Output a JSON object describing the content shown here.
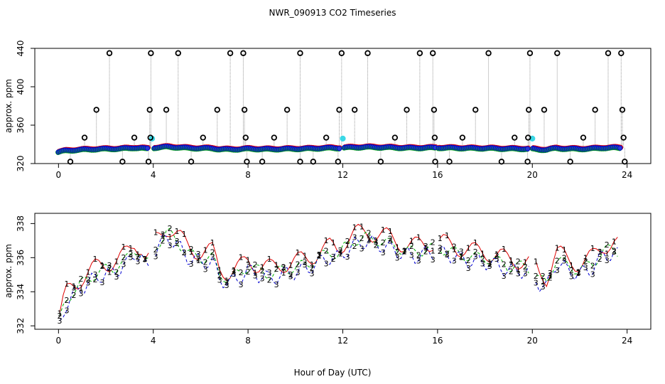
{
  "figure": {
    "title": "NWR_090913  CO2 Timeseries",
    "xlabel": "Hour of Day (UTC)"
  },
  "colors": {
    "series1": "#e00000",
    "series2": "#00b000",
    "series3": "#0000d0",
    "fill_blue": "#2a3bd6",
    "highlight_cyan": "#3ad8e6",
    "outlier_black": "#000000",
    "guide_gray": "#9a9a9a"
  },
  "chart_data": [
    {
      "type": "scatter",
      "title": "",
      "xlabel": "",
      "ylabel": "approx. ppm",
      "xlim": [
        -1,
        25
      ],
      "ylim": [
        320,
        440
      ],
      "xticks": [
        0,
        4,
        8,
        12,
        16,
        20,
        24
      ],
      "yticks": [
        320,
        360,
        400,
        440
      ],
      "x_tick_labels": [
        "0",
        "4",
        "8",
        "12",
        "16",
        "20",
        "24"
      ],
      "y_tick_labels": [
        "320",
        "360",
        "400",
        "440"
      ],
      "baseline_anchors": {
        "x": [
          0,
          0.3,
          0.6,
          1.0,
          1.5,
          2.0,
          2.5,
          3.0,
          3.2,
          3.5,
          3.7,
          3.9,
          4.0,
          4.3,
          4.6,
          5.0,
          5.5,
          6.0,
          6.5,
          6.8,
          7.2,
          7.6,
          8.0,
          8.5,
          9.0,
          9.5,
          10.0,
          10.5,
          11.0,
          11.5,
          11.8,
          12.0,
          12.5,
          13.0,
          13.5,
          14.0,
          14.5,
          15.0,
          15.5,
          16.0,
          16.5,
          17.0,
          17.5,
          18.0,
          18.5,
          19.0,
          19.5,
          20.0,
          20.3,
          20.6,
          21.0,
          21.5,
          22.0,
          22.5,
          23.0,
          23.5,
          23.7
        ],
        "y": [
          332,
          333.5,
          334,
          334.5,
          335,
          335.3,
          335.5,
          336,
          336.5,
          336.3,
          335.5,
          335.8,
          336.5,
          337,
          337.5,
          337,
          336.2,
          336,
          336,
          335,
          334.8,
          335,
          335.5,
          335.2,
          335,
          335.3,
          335.4,
          335.6,
          336,
          336.3,
          336.2,
          336.5,
          337,
          337.2,
          337,
          336.8,
          336.5,
          336.3,
          336.5,
          336.6,
          336.4,
          336.2,
          336,
          336,
          335.8,
          335.5,
          335.5,
          335.3,
          334.7,
          334.5,
          336,
          335.5,
          335.3,
          335.6,
          336.4,
          336.5,
          336.3
        ]
      },
      "outliers": [
        {
          "x": 0.5,
          "y": 322
        },
        {
          "x": 1.1,
          "y": 347
        },
        {
          "x": 1.6,
          "y": 376
        },
        {
          "x": 2.15,
          "y": 435
        },
        {
          "x": 2.7,
          "y": 322
        },
        {
          "x": 3.2,
          "y": 347
        },
        {
          "x": 3.8,
          "y": 322
        },
        {
          "x": 3.85,
          "y": 376
        },
        {
          "x": 3.9,
          "y": 435
        },
        {
          "x": 3.88,
          "y": 347
        },
        {
          "x": 4.55,
          "y": 376
        },
        {
          "x": 5.05,
          "y": 435
        },
        {
          "x": 5.6,
          "y": 322
        },
        {
          "x": 6.1,
          "y": 347
        },
        {
          "x": 6.7,
          "y": 376
        },
        {
          "x": 7.25,
          "y": 435
        },
        {
          "x": 7.8,
          "y": 435
        },
        {
          "x": 7.85,
          "y": 376
        },
        {
          "x": 7.9,
          "y": 347
        },
        {
          "x": 7.95,
          "y": 322
        },
        {
          "x": 8.6,
          "y": 322
        },
        {
          "x": 9.1,
          "y": 347
        },
        {
          "x": 9.65,
          "y": 376
        },
        {
          "x": 10.2,
          "y": 322
        },
        {
          "x": 10.2,
          "y": 435
        },
        {
          "x": 10.75,
          "y": 322
        },
        {
          "x": 11.3,
          "y": 347
        },
        {
          "x": 11.8,
          "y": 322
        },
        {
          "x": 11.85,
          "y": 376
        },
        {
          "x": 11.95,
          "y": 435
        },
        {
          "x": 12.5,
          "y": 376
        },
        {
          "x": 13.05,
          "y": 435
        },
        {
          "x": 13.6,
          "y": 322
        },
        {
          "x": 14.2,
          "y": 347
        },
        {
          "x": 14.7,
          "y": 376
        },
        {
          "x": 15.25,
          "y": 435
        },
        {
          "x": 15.8,
          "y": 435
        },
        {
          "x": 15.85,
          "y": 376
        },
        {
          "x": 15.88,
          "y": 347
        },
        {
          "x": 15.9,
          "y": 322
        },
        {
          "x": 16.5,
          "y": 322
        },
        {
          "x": 17.05,
          "y": 347
        },
        {
          "x": 17.6,
          "y": 376
        },
        {
          "x": 18.15,
          "y": 435
        },
        {
          "x": 18.7,
          "y": 322
        },
        {
          "x": 19.25,
          "y": 347
        },
        {
          "x": 19.8,
          "y": 322
        },
        {
          "x": 19.82,
          "y": 347
        },
        {
          "x": 19.85,
          "y": 376
        },
        {
          "x": 19.9,
          "y": 435
        },
        {
          "x": 20.5,
          "y": 376
        },
        {
          "x": 21.05,
          "y": 435
        },
        {
          "x": 21.6,
          "y": 322
        },
        {
          "x": 22.15,
          "y": 347
        },
        {
          "x": 22.65,
          "y": 376
        },
        {
          "x": 23.2,
          "y": 435
        },
        {
          "x": 23.75,
          "y": 435
        },
        {
          "x": 23.8,
          "y": 376
        },
        {
          "x": 23.85,
          "y": 347
        },
        {
          "x": 23.9,
          "y": 322
        }
      ],
      "highlights": [
        {
          "x": 3.95,
          "y": 346
        },
        {
          "x": 12.0,
          "y": 346
        },
        {
          "x": 20.0,
          "y": 346
        }
      ],
      "gaps": [
        [
          3.8,
          4.0
        ],
        [
          11.9,
          12.0
        ],
        [
          15.9,
          16.0
        ],
        [
          19.85,
          20.0
        ]
      ]
    },
    {
      "type": "line",
      "title": "",
      "xlabel": "Hour of Day (UTC)",
      "ylabel": "approx. ppm",
      "xlim": [
        -1,
        25
      ],
      "ylim": [
        331.8,
        338.6
      ],
      "xticks": [
        0,
        4,
        8,
        12,
        16,
        20,
        24
      ],
      "yticks": [
        332,
        334,
        336,
        338
      ],
      "x_tick_labels": [
        "0",
        "4",
        "8",
        "12",
        "16",
        "20",
        "24"
      ],
      "y_tick_labels": [
        "332",
        "334",
        "336",
        "338"
      ],
      "series": [
        {
          "name": "1",
          "color": "#e00000",
          "dashed": false,
          "symbol": "1",
          "offset": 0.35,
          "spread": 0.55
        },
        {
          "name": "2",
          "color": "#00b000",
          "dashed": true,
          "symbol": "2",
          "offset": 0.0,
          "spread": 0.35
        },
        {
          "name": "3",
          "color": "#0000d0",
          "dashed": true,
          "symbol": "3",
          "offset": -0.25,
          "spread": 0.45
        }
      ],
      "x_range": [
        0.05,
        23.65
      ],
      "step": 0.15,
      "gaps": [
        [
          3.85,
          4.0
        ],
        [
          11.95,
          12.05
        ],
        [
          15.95,
          16.05
        ],
        [
          19.9,
          20.0
        ]
      ]
    }
  ]
}
